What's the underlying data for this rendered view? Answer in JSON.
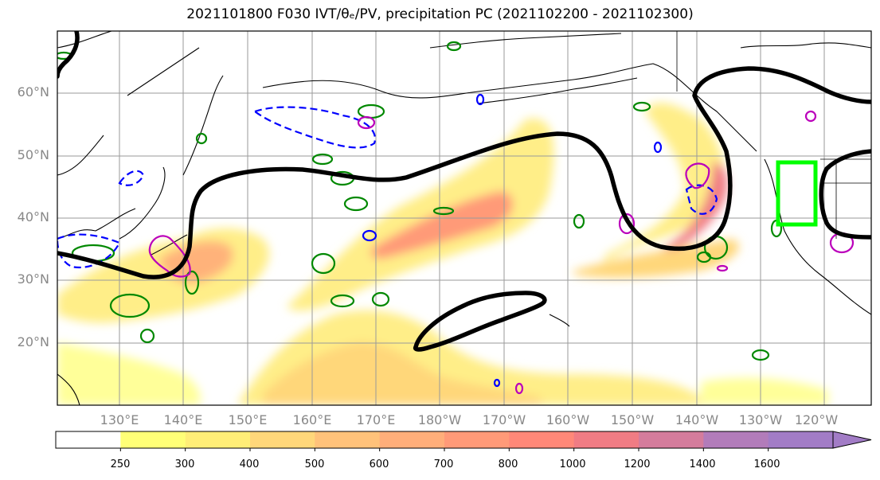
{
  "title": "2021101800 F030 IVT/θₑ/PV, precipitation PC (2021102200 - 2021102300)",
  "lat_labels": [
    "60°N",
    "50°N",
    "40°N",
    "30°N",
    "20°N"
  ],
  "lon_labels": [
    "130°E",
    "140°E",
    "150°E",
    "160°E",
    "170°E",
    "180°W",
    "170°W",
    "160°W",
    "150°W",
    "140°W",
    "130°W",
    "120°W"
  ],
  "colorbar": {
    "ticks": [
      "250",
      "300",
      "400",
      "500",
      "600",
      "700",
      "800",
      "1000",
      "1200",
      "1400",
      "1600"
    ],
    "colors": [
      "#ffffff",
      "#ffff77",
      "#ffee77",
      "#ffd77a",
      "#ffc27a",
      "#ffae7a",
      "#ff9a78",
      "#ff8878",
      "#f07c84",
      "#d47c9c",
      "#b27cba",
      "#a27cc6"
    ]
  },
  "colors": {
    "pv_contour": "#000000",
    "theta_e_positive": "#008800",
    "theta_e_negative": "#0000ff",
    "magenta_contour": "#bb00bb",
    "region_box": "#00ff00"
  }
}
